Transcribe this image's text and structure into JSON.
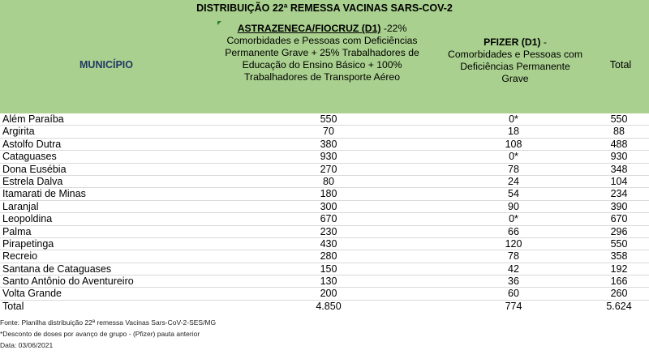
{
  "title": "DISTRIBUIÇÃO 22ª REMESSA VACINAS SARS-COV-2",
  "header": {
    "municipio": "MUNICÍPIO",
    "astra_brand": "ASTRAZENECA/FIOCRUZ (D1)",
    "astra_pct": " -22%",
    "astra_desc": "Comorbidades e Pessoas com Deficiências Permanente Grave + 25% Trabalhadores de Educação do Ensino Básico + 100% Trabalhadores de Transporte Aéreo",
    "pfizer_brand": "PFIZER (D1)",
    "pfizer_dash": " -",
    "pfizer_desc": "Comorbidades e Pessoas com Deficiências Permanente Grave",
    "total": "Total"
  },
  "rows": [
    {
      "municipio": "Além Paraíba",
      "astra": "550",
      "pfizer": "0*",
      "total": "550"
    },
    {
      "municipio": "Argirita",
      "astra": "70",
      "pfizer": "18",
      "total": "88"
    },
    {
      "municipio": "Astolfo Dutra",
      "astra": "380",
      "pfizer": "108",
      "total": "488"
    },
    {
      "municipio": "Cataguases",
      "astra": "930",
      "pfizer": "0*",
      "total": "930"
    },
    {
      "municipio": "Dona Eusébia",
      "astra": "270",
      "pfizer": "78",
      "total": "348"
    },
    {
      "municipio": "Estrela Dalva",
      "astra": "80",
      "pfizer": "24",
      "total": "104"
    },
    {
      "municipio": "Itamarati de Minas",
      "astra": "180",
      "pfizer": "54",
      "total": "234"
    },
    {
      "municipio": "Laranjal",
      "astra": "300",
      "pfizer": "90",
      "total": "390"
    },
    {
      "municipio": "Leopoldina",
      "astra": "670",
      "pfizer": "0*",
      "total": "670"
    },
    {
      "municipio": "Palma",
      "astra": "230",
      "pfizer": "66",
      "total": "296"
    },
    {
      "municipio": "Pirapetinga",
      "astra": "430",
      "pfizer": "120",
      "total": "550"
    },
    {
      "municipio": "Recreio",
      "astra": "280",
      "pfizer": "78",
      "total": "358"
    },
    {
      "municipio": "Santana de Cataguases",
      "astra": "150",
      "pfizer": "42",
      "total": "192"
    },
    {
      "municipio": "Santo Antônio do Aventureiro",
      "astra": "130",
      "pfizer": "36",
      "total": "166"
    },
    {
      "municipio": "Volta Grande",
      "astra": "200",
      "pfizer": "60",
      "total": "260"
    }
  ],
  "totals": {
    "label": "Total",
    "astra": "4.850",
    "pfizer": "774",
    "total": "5.624"
  },
  "notes": {
    "fonte": "Fonte: Planilha distribuição 22ª remessa Vacinas Sars-CoV-2-SES/MG",
    "desconto": "*Desconto de doses por avanço de grupo - (Pfizer) pauta anterior",
    "data": "Data: 03/06/2021"
  }
}
